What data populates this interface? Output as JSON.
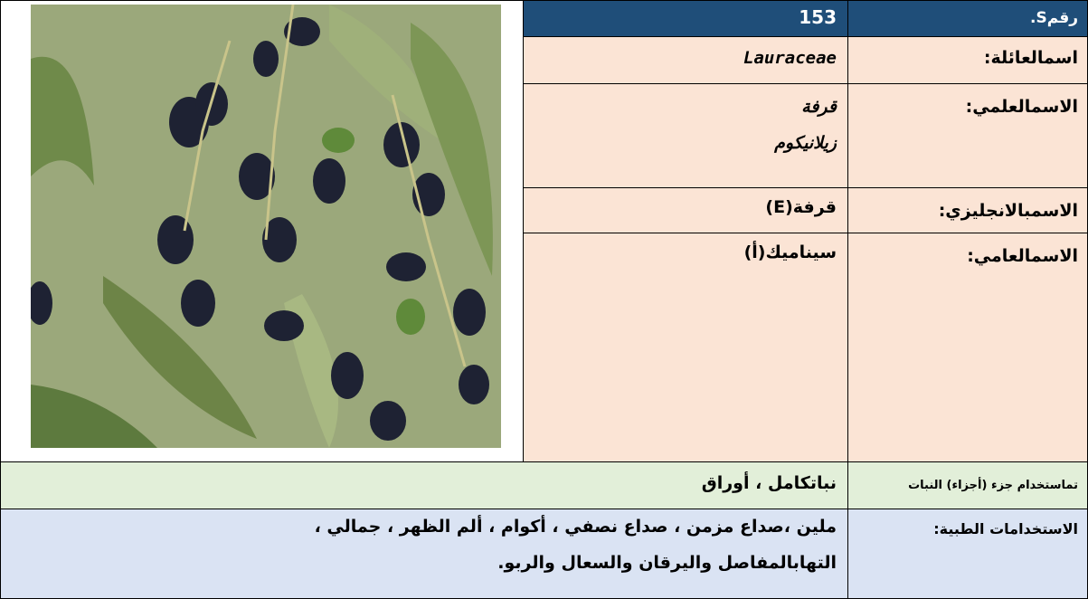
{
  "card": {
    "number": {
      "label": "رقمS.",
      "value": "153"
    },
    "family": {
      "label": "اسمالعائلة:",
      "value": "Lauraceae"
    },
    "scientific": {
      "label": "الاسمالعلمي:",
      "lines": [
        "قرفة",
        "زيلانيكوم"
      ]
    },
    "english": {
      "label": "الاسمبالانجليزي:",
      "value": "قرفة(E)"
    },
    "common": {
      "label": "الاسمالعامي:",
      "value": "سيناميك(أ)"
    },
    "parts": {
      "label": "تماستخدام جزء (أجزاء) النبات",
      "value": "نباتكامل ، أوراق"
    },
    "uses": {
      "label": "الاستخدامات الطبية:",
      "lines": [
        "ملين ،صداع مزمن ، صداع نصفي ، أكوام ، ألم الظهر ، جمالي ،",
        "التهابالمفاصل واليرقان والسعال والربو."
      ]
    }
  }
}
